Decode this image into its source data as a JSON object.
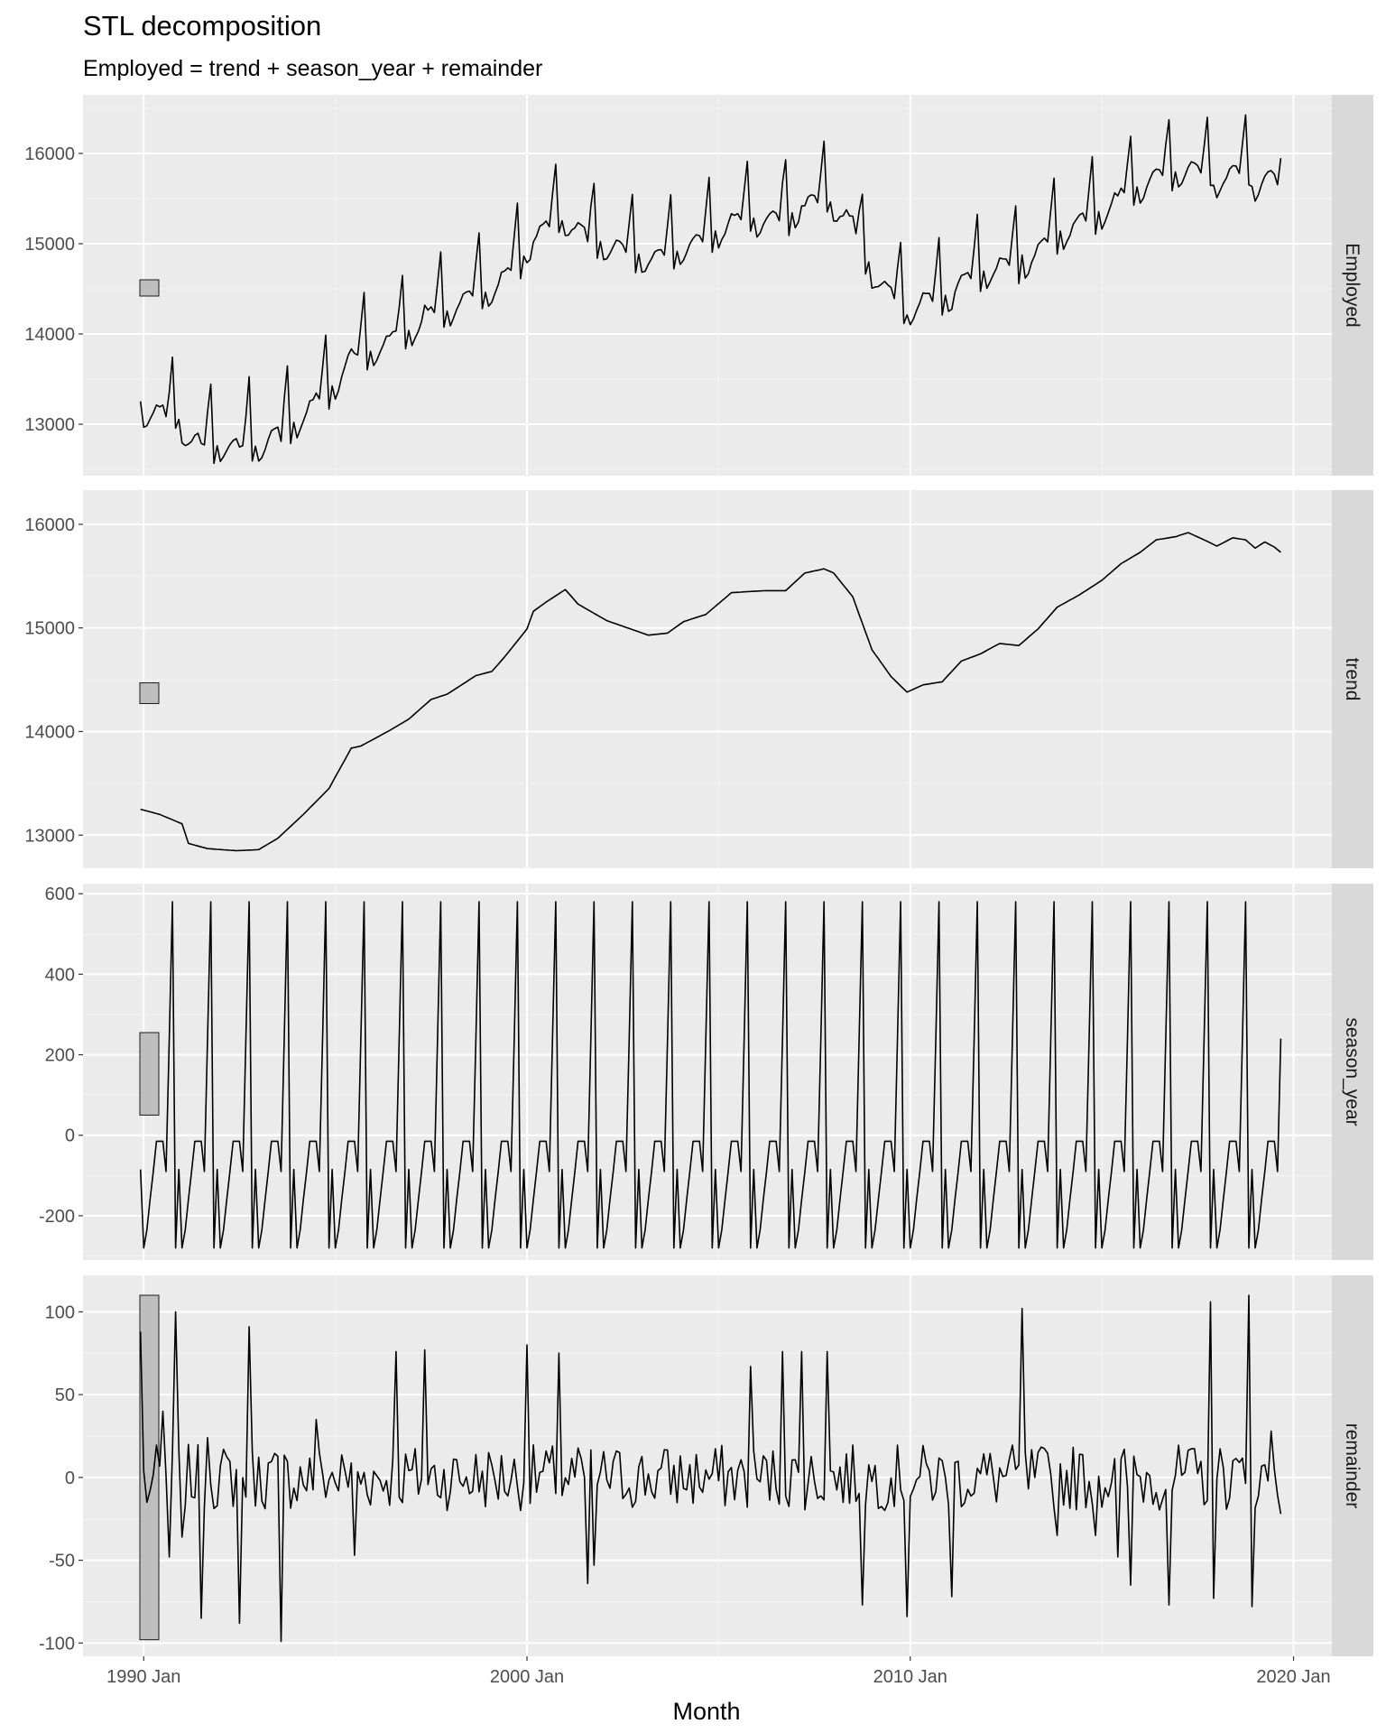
{
  "chart_data": {
    "type": "line",
    "title": "STL decomposition",
    "subtitle": "Employed = trend + season_year + remainder",
    "xlabel": "Month",
    "x_ticks": [
      "1990 Jan",
      "2000 Jan",
      "2010 Jan",
      "2020 Jan"
    ],
    "x_range": [
      "1988-06",
      "2021-01"
    ],
    "grid": true,
    "start": "1989-12",
    "end": "2019-09",
    "panels": [
      {
        "name": "Employed",
        "ylim": [
          12430,
          16650
        ],
        "yticks": [
          13000,
          14000,
          15000,
          16000
        ],
        "scale_bar": [
          14420,
          14600
        ],
        "seasonal_pattern": [
          -85,
          -280,
          -235,
          -160,
          -90,
          -15,
          -15,
          -15,
          -90,
          240,
          580,
          -280
        ],
        "series_note": "Employed = trend + season_year + remainder"
      },
      {
        "name": "trend",
        "ylim": [
          12680,
          16330
        ],
        "yticks": [
          13000,
          14000,
          15000,
          16000
        ],
        "scale_bar": [
          14270,
          14470
        ],
        "knots": [
          [
            "1989-12",
            13250
          ],
          [
            "1990-06",
            13200
          ],
          [
            "1991-01",
            13110
          ],
          [
            "1991-03",
            12920
          ],
          [
            "1991-09",
            12870
          ],
          [
            "1992-06",
            12850
          ],
          [
            "1993-01",
            12860
          ],
          [
            "1993-07",
            12970
          ],
          [
            "1994-03",
            13200
          ],
          [
            "1994-11",
            13450
          ],
          [
            "1995-06",
            13840
          ],
          [
            "1995-09",
            13860
          ],
          [
            "1996-06",
            14010
          ],
          [
            "1996-12",
            14120
          ],
          [
            "1997-07",
            14310
          ],
          [
            "1997-12",
            14360
          ],
          [
            "1998-09",
            14540
          ],
          [
            "1999-02",
            14580
          ],
          [
            "1999-06",
            14720
          ],
          [
            "2000-01",
            14990
          ],
          [
            "2000-03",
            15160
          ],
          [
            "2000-07",
            15250
          ],
          [
            "2001-01",
            15370
          ],
          [
            "2001-05",
            15230
          ],
          [
            "2002-02",
            15070
          ],
          [
            "2003-03",
            14930
          ],
          [
            "2003-09",
            14950
          ],
          [
            "2004-02",
            15060
          ],
          [
            "2004-09",
            15130
          ],
          [
            "2005-05",
            15340
          ],
          [
            "2005-10",
            15350
          ],
          [
            "2006-04",
            15360
          ],
          [
            "2006-10",
            15360
          ],
          [
            "2007-04",
            15530
          ],
          [
            "2007-10",
            15570
          ],
          [
            "2008-01",
            15530
          ],
          [
            "2008-07",
            15300
          ],
          [
            "2009-01",
            14790
          ],
          [
            "2009-07",
            14530
          ],
          [
            "2009-12",
            14380
          ],
          [
            "2010-05",
            14450
          ],
          [
            "2010-11",
            14480
          ],
          [
            "2011-05",
            14680
          ],
          [
            "2011-11",
            14750
          ],
          [
            "2012-05",
            14850
          ],
          [
            "2012-11",
            14830
          ],
          [
            "2013-05",
            14990
          ],
          [
            "2013-11",
            15200
          ],
          [
            "2014-06",
            15320
          ],
          [
            "2015-01",
            15460
          ],
          [
            "2015-07",
            15620
          ],
          [
            "2016-01",
            15730
          ],
          [
            "2016-06",
            15850
          ],
          [
            "2016-12",
            15880
          ],
          [
            "2017-04",
            15920
          ],
          [
            "2017-09",
            15850
          ],
          [
            "2018-01",
            15790
          ],
          [
            "2018-06",
            15870
          ],
          [
            "2018-10",
            15850
          ],
          [
            "2019-01",
            15770
          ],
          [
            "2019-04",
            15830
          ],
          [
            "2019-07",
            15780
          ],
          [
            "2019-09",
            15730
          ]
        ]
      },
      {
        "name": "season_year",
        "ylim": [
          -310,
          625
        ],
        "yticks": [
          -200,
          0,
          200,
          400,
          600
        ],
        "scale_bar": [
          50,
          255
        ],
        "pattern_months": [
          "Dec",
          "Jan",
          "Feb",
          "Mar",
          "Apr",
          "May",
          "Jun",
          "Jul",
          "Aug",
          "Sep",
          "Oct",
          "Nov"
        ],
        "pattern": [
          -85,
          -280,
          -235,
          -160,
          -90,
          -15,
          -15,
          -15,
          -90,
          240,
          580,
          -280
        ]
      },
      {
        "name": "remainder",
        "ylim": [
          -108,
          122
        ],
        "yticks": [
          -100,
          -50,
          0,
          50,
          100
        ],
        "scale_bar": [
          -98,
          110
        ],
        "spikes": [
          [
            "1989-12",
            88
          ],
          [
            "1990-02",
            -15
          ],
          [
            "1990-07",
            40
          ],
          [
            "1990-09",
            -48
          ],
          [
            "1990-11",
            100
          ],
          [
            "1991-01",
            -36
          ],
          [
            "1991-07",
            -85
          ],
          [
            "1991-09",
            24
          ],
          [
            "1992-07",
            -88
          ],
          [
            "1992-10",
            91
          ],
          [
            "1993-08",
            -99
          ],
          [
            "1994-07",
            35
          ],
          [
            "1995-07",
            -47
          ],
          [
            "1996-08",
            76
          ],
          [
            "1997-05",
            77
          ],
          [
            "2000-01",
            80
          ],
          [
            "2000-11",
            75
          ],
          [
            "2001-08",
            -64
          ],
          [
            "2001-10",
            -53
          ],
          [
            "2005-11",
            67
          ],
          [
            "2006-09",
            76
          ],
          [
            "2007-03",
            76
          ],
          [
            "2007-11",
            76
          ],
          [
            "2008-10",
            -77
          ],
          [
            "2009-12",
            -84
          ],
          [
            "2011-02",
            -72
          ],
          [
            "2012-12",
            102
          ],
          [
            "2013-11",
            -35
          ],
          [
            "2014-11",
            -35
          ],
          [
            "2015-06",
            -48
          ],
          [
            "2015-10",
            -65
          ],
          [
            "2016-10",
            -77
          ],
          [
            "2017-11",
            106
          ],
          [
            "2017-12",
            -73
          ],
          [
            "2018-11",
            110
          ],
          [
            "2018-12",
            -78
          ],
          [
            "2019-06",
            28
          ],
          [
            "2019-09",
            -22
          ]
        ]
      }
    ]
  }
}
